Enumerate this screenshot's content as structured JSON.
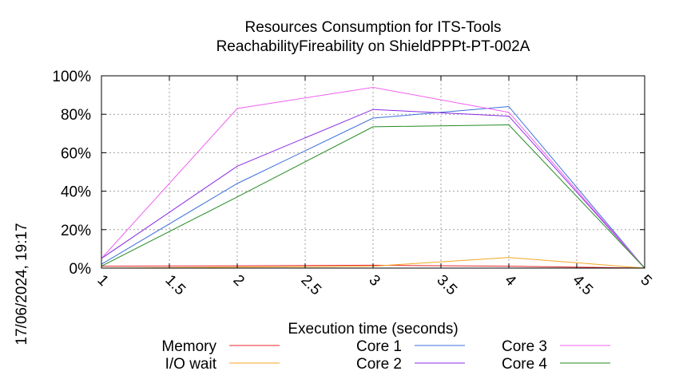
{
  "chart_data": {
    "type": "line",
    "title": [
      "Resources Consumption for ITS-Tools",
      "ReachabilityFireability on ShieldPPPt-PT-002A"
    ],
    "xlabel": "Execution time (seconds)",
    "ylabel": "",
    "timestamp": "17/06/2024, 19:17",
    "xlim": [
      1,
      5
    ],
    "ylim": [
      0,
      100
    ],
    "x_ticks": [
      "1",
      "1.5",
      "2",
      "2.5",
      "3",
      "3.5",
      "4",
      "4.5",
      "5"
    ],
    "x_tick_values": [
      1,
      1.5,
      2,
      2.5,
      3,
      3.5,
      4,
      4.5,
      5
    ],
    "y_ticks": [
      "0%",
      "20%",
      "40%",
      "60%",
      "80%",
      "100%"
    ],
    "y_tick_values": [
      0,
      20,
      40,
      60,
      80,
      100
    ],
    "grid": true,
    "legend_position": "bottom",
    "x": [
      1,
      2,
      3,
      4,
      5
    ],
    "series": [
      {
        "name": "Memory",
        "color": "#e8262a",
        "values": [
          1,
          1.2,
          1.5,
          1,
          0
        ]
      },
      {
        "name": "I/O wait",
        "color": "#f5a623",
        "values": [
          0,
          0.5,
          1,
          5.5,
          0
        ]
      },
      {
        "name": "Core 1",
        "color": "#3b6ed8",
        "values": [
          2,
          44,
          78,
          84,
          0
        ]
      },
      {
        "name": "Core 2",
        "color": "#8a2be2",
        "values": [
          5,
          53,
          82.5,
          79,
          0
        ]
      },
      {
        "name": "Core 3",
        "color": "#f060f0",
        "values": [
          5,
          83,
          94,
          81,
          0
        ]
      },
      {
        "name": "Core 4",
        "color": "#238b23",
        "values": [
          1,
          37,
          73.5,
          74.5,
          0
        ]
      }
    ]
  }
}
